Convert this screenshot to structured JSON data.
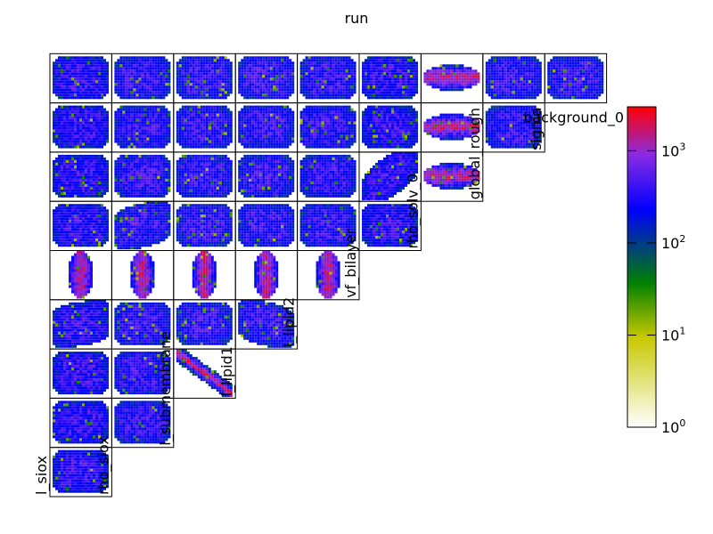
{
  "chart_data": {
    "type": "heatmap",
    "title": "run",
    "parameters": [
      "l_siox",
      "rho_siox",
      "l_submembrane",
      "l_lipid1",
      "l_lipid2",
      "vf_bilayer",
      "rho_solv_0",
      "global_rough",
      "sigma",
      "background_0"
    ],
    "shown_labels": [
      "l_siox",
      "rho_siox",
      "l_submembrane",
      "l_lipid1",
      "l_lipid2",
      "vf_bilayer",
      "rho_solv_0",
      "global_rough",
      "sigma",
      "background_0"
    ],
    "layout": "lower-triangular matrix of pairwise 2D histograms",
    "colorbar": {
      "scale": "log",
      "range": [
        1,
        3000
      ],
      "ticks": [
        {
          "value": 1,
          "base": "10",
          "exp": "0"
        },
        {
          "value": 10,
          "base": "10",
          "exp": "1"
        },
        {
          "value": 100,
          "base": "10",
          "exp": "2"
        },
        {
          "value": 1000,
          "base": "10",
          "exp": "3"
        }
      ],
      "colors": [
        "#ffffff",
        "#c8c800",
        "#008000",
        "#0000ff",
        "#8a2be2",
        "#ff0000"
      ]
    },
    "panels": [
      {
        "row": 0,
        "col": 0,
        "pattern": "blob",
        "correlation": 0.0
      },
      {
        "row": 1,
        "col": 0,
        "pattern": "blob",
        "correlation": 0.0
      },
      {
        "row": 1,
        "col": 1,
        "pattern": "blob",
        "correlation": 0.0
      },
      {
        "row": 2,
        "col": 0,
        "pattern": "blob",
        "correlation": 0.0
      },
      {
        "row": 2,
        "col": 1,
        "pattern": "blob",
        "correlation": 0.0
      },
      {
        "row": 2,
        "col": 2,
        "pattern": "line",
        "correlation": -0.95
      },
      {
        "row": 3,
        "col": 0,
        "pattern": "blob",
        "correlation": 0.2
      },
      {
        "row": 3,
        "col": 1,
        "pattern": "blob",
        "correlation": 0.0
      },
      {
        "row": 3,
        "col": 2,
        "pattern": "blob",
        "correlation": 0.0
      },
      {
        "row": 3,
        "col": 3,
        "pattern": "blob",
        "correlation": -0.3
      },
      {
        "row": 4,
        "col": 0,
        "pattern": "vertical",
        "correlation": 0.0
      },
      {
        "row": 4,
        "col": 1,
        "pattern": "vertical",
        "correlation": 0.0
      },
      {
        "row": 4,
        "col": 2,
        "pattern": "vertical",
        "correlation": 0.0
      },
      {
        "row": 4,
        "col": 3,
        "pattern": "vertical",
        "correlation": 0.0
      },
      {
        "row": 4,
        "col": 4,
        "pattern": "vertical",
        "correlation": 0.0
      },
      {
        "row": 5,
        "col": 0,
        "pattern": "blob",
        "correlation": 0.0
      },
      {
        "row": 5,
        "col": 1,
        "pattern": "blob",
        "correlation": 0.3
      },
      {
        "row": 5,
        "col": 2,
        "pattern": "blob",
        "correlation": 0.0
      },
      {
        "row": 5,
        "col": 3,
        "pattern": "blob",
        "correlation": 0.0
      },
      {
        "row": 5,
        "col": 4,
        "pattern": "blob",
        "correlation": 0.0
      },
      {
        "row": 5,
        "col": 5,
        "pattern": "blob",
        "correlation": 0.0
      },
      {
        "row": 6,
        "col": 0,
        "pattern": "blob",
        "correlation": 0.0
      },
      {
        "row": 6,
        "col": 1,
        "pattern": "blob",
        "correlation": 0.0
      },
      {
        "row": 6,
        "col": 2,
        "pattern": "blob",
        "correlation": 0.0
      },
      {
        "row": 6,
        "col": 3,
        "pattern": "blob",
        "correlation": 0.0
      },
      {
        "row": 6,
        "col": 4,
        "pattern": "blob",
        "correlation": 0.0
      },
      {
        "row": 6,
        "col": 5,
        "pattern": "blob",
        "correlation": 0.85
      },
      {
        "row": 6,
        "col": 6,
        "pattern": "horizontal",
        "correlation": 0.0
      },
      {
        "row": 7,
        "col": 0,
        "pattern": "blob",
        "correlation": 0.0
      },
      {
        "row": 7,
        "col": 1,
        "pattern": "blob",
        "correlation": 0.0
      },
      {
        "row": 7,
        "col": 2,
        "pattern": "blob",
        "correlation": 0.0
      },
      {
        "row": 7,
        "col": 3,
        "pattern": "blob",
        "correlation": 0.0
      },
      {
        "row": 7,
        "col": 4,
        "pattern": "blob",
        "correlation": 0.0
      },
      {
        "row": 7,
        "col": 5,
        "pattern": "blob",
        "correlation": 0.0
      },
      {
        "row": 7,
        "col": 6,
        "pattern": "horizontal",
        "correlation": 0.0
      },
      {
        "row": 7,
        "col": 7,
        "pattern": "blob",
        "correlation": 0.0
      },
      {
        "row": 8,
        "col": 0,
        "pattern": "blob",
        "correlation": 0.0
      },
      {
        "row": 8,
        "col": 1,
        "pattern": "blob",
        "correlation": 0.0
      },
      {
        "row": 8,
        "col": 2,
        "pattern": "blob",
        "correlation": 0.0
      },
      {
        "row": 8,
        "col": 3,
        "pattern": "blob",
        "correlation": 0.0
      },
      {
        "row": 8,
        "col": 4,
        "pattern": "blob",
        "correlation": 0.0
      },
      {
        "row": 8,
        "col": 5,
        "pattern": "blob",
        "correlation": 0.0
      },
      {
        "row": 8,
        "col": 6,
        "pattern": "horizontal",
        "correlation": 0.0
      },
      {
        "row": 8,
        "col": 7,
        "pattern": "blob",
        "correlation": 0.0
      },
      {
        "row": 8,
        "col": 8,
        "pattern": "blob",
        "correlation": 0.0
      }
    ]
  }
}
